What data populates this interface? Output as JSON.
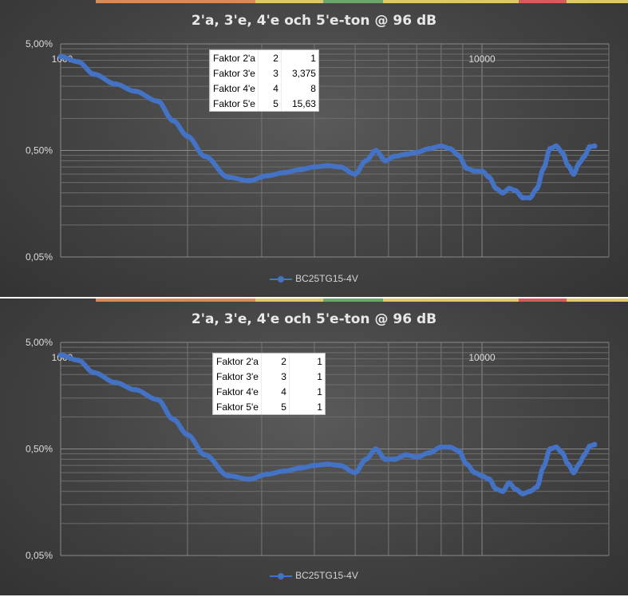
{
  "chart_data": [
    {
      "type": "line",
      "title": "2'a, 3'e, 4'e och 5'e-ton @ 96 dB",
      "x_scale": "log",
      "xlim": [
        1000,
        20000
      ],
      "x_tick_labels": [
        "1000",
        "10000"
      ],
      "y_scale": "log",
      "ylim": [
        0.0005,
        0.05
      ],
      "y_tick_labels": [
        "5,00%",
        "0,50%",
        "0,05%"
      ],
      "grid": true,
      "legend": "bottom",
      "series": [
        {
          "name": "BC25TG15-4V",
          "color": "#4472c4",
          "x": [
            1000,
            1100,
            1200,
            1350,
            1500,
            1700,
            1850,
            2000,
            2200,
            2500,
            2800,
            3100,
            3400,
            3700,
            4000,
            4300,
            4600,
            5000,
            5300,
            5600,
            5900,
            6200,
            6600,
            7000,
            7500,
            8000,
            8400,
            8800,
            9200,
            9600,
            10000,
            10400,
            10800,
            11200,
            11600,
            12000,
            12500,
            13000,
            13500,
            14000,
            14500,
            15000,
            15500,
            16000,
            16500,
            17000,
            17500,
            18000,
            18500
          ],
          "y": [
            0.038,
            0.034,
            0.026,
            0.021,
            0.018,
            0.0145,
            0.0095,
            0.0068,
            0.0044,
            0.0028,
            0.0026,
            0.0029,
            0.0031,
            0.0033,
            0.0035,
            0.0036,
            0.0035,
            0.003,
            0.004,
            0.005,
            0.004,
            0.0044,
            0.0046,
            0.0048,
            0.0052,
            0.0055,
            0.0052,
            0.0045,
            0.0034,
            0.0032,
            0.0032,
            0.0028,
            0.0022,
            0.002,
            0.0022,
            0.0021,
            0.0018,
            0.0018,
            0.0022,
            0.0034,
            0.0052,
            0.0055,
            0.0048,
            0.0036,
            0.003,
            0.0038,
            0.0044,
            0.0054,
            0.0055
          ]
        }
      ],
      "table": {
        "rows": [
          [
            "Faktor 2'a",
            "2",
            "1"
          ],
          [
            "Faktor 3'e",
            "3",
            "3,375"
          ],
          [
            "Faktor 4'e",
            "4",
            "8"
          ],
          [
            "Faktor 5'e",
            "5",
            "15,63"
          ]
        ]
      }
    },
    {
      "type": "line",
      "title": "2'a, 3'e, 4'e och 5'e-ton @ 96 dB",
      "x_scale": "log",
      "xlim": [
        1000,
        20000
      ],
      "x_tick_labels": [
        "1000",
        "10000"
      ],
      "y_scale": "log",
      "ylim": [
        0.0005,
        0.05
      ],
      "y_tick_labels": [
        "5,00%",
        "0,50%",
        "0,05%"
      ],
      "grid": true,
      "legend": "bottom",
      "series": [
        {
          "name": "BC25TG15-4V",
          "color": "#4472c4",
          "x": [
            1000,
            1100,
            1200,
            1350,
            1500,
            1700,
            1850,
            2000,
            2200,
            2500,
            2800,
            3100,
            3400,
            3700,
            4000,
            4300,
            4600,
            5000,
            5300,
            5600,
            5900,
            6200,
            6600,
            7000,
            7500,
            8000,
            8400,
            8800,
            9200,
            9600,
            10000,
            10400,
            10800,
            11200,
            11600,
            12000,
            12500,
            13000,
            13500,
            14000,
            14500,
            15000,
            15500,
            16000,
            16500,
            17000,
            17500,
            18000,
            18500
          ],
          "y": [
            0.038,
            0.034,
            0.026,
            0.021,
            0.018,
            0.0145,
            0.0095,
            0.0068,
            0.0044,
            0.0028,
            0.0026,
            0.0029,
            0.0031,
            0.0033,
            0.0035,
            0.0036,
            0.0035,
            0.003,
            0.004,
            0.005,
            0.004,
            0.004,
            0.0044,
            0.0042,
            0.0046,
            0.0052,
            0.0052,
            0.0048,
            0.0036,
            0.003,
            0.0028,
            0.0026,
            0.0021,
            0.002,
            0.0024,
            0.0021,
            0.0019,
            0.002,
            0.0022,
            0.0034,
            0.005,
            0.0052,
            0.0046,
            0.0036,
            0.003,
            0.0036,
            0.0044,
            0.0053,
            0.0055
          ]
        }
      ],
      "table": {
        "rows": [
          [
            "Faktor 2'a",
            "2",
            "1"
          ],
          [
            "Faktor 3'e",
            "3",
            "1"
          ],
          [
            "Faktor 4'e",
            "4",
            "1"
          ],
          [
            "Faktor 5'e",
            "5",
            "1"
          ]
        ]
      }
    }
  ]
}
